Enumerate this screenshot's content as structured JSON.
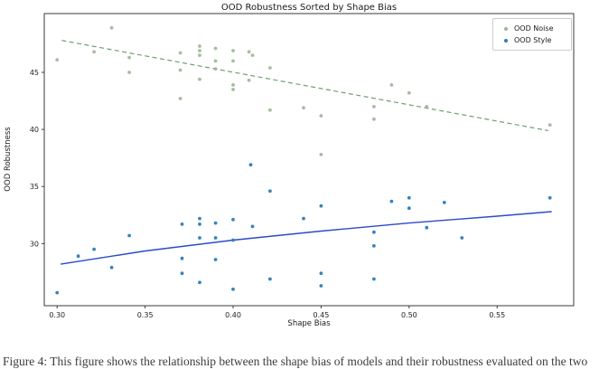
{
  "caption": {
    "text": "Figure 4: This figure shows the relationship between the shape bias of models and their robustness evaluated on the two"
  },
  "legend": {
    "entries": [
      "OOD Noise",
      "OOD Style"
    ]
  },
  "chart_data": {
    "type": "scatter",
    "title": "OOD Robustness Sorted by Shape Bias",
    "xlabel": "Shape Bias",
    "ylabel": "OOD Robustness",
    "xlim": [
      0.2927,
      0.5935
    ],
    "ylim": [
      24.56,
      50.15
    ],
    "grid": false,
    "legend_position": "upper right",
    "xticks": {
      "values": [
        0.3,
        0.35,
        0.4,
        0.45,
        0.5,
        0.55
      ],
      "labels": [
        "0.30",
        "0.35",
        "0.40",
        "0.45",
        "0.50",
        "0.55"
      ]
    },
    "yticks": {
      "values": [
        30,
        35,
        40,
        45
      ],
      "labels": [
        "30",
        "35",
        "40",
        "45"
      ]
    },
    "frame_color": "#3b3b3b",
    "series": [
      {
        "name": "OOD Noise",
        "marker_color": "#9ab795",
        "points": [
          [
            0.3,
            46.1
          ],
          [
            0.321,
            46.8
          ],
          [
            0.331,
            48.9
          ],
          [
            0.341,
            46.3
          ],
          [
            0.341,
            45.0
          ],
          [
            0.37,
            46.7
          ],
          [
            0.37,
            45.2
          ],
          [
            0.37,
            42.7
          ],
          [
            0.381,
            47.3
          ],
          [
            0.381,
            46.9
          ],
          [
            0.381,
            46.5
          ],
          [
            0.381,
            44.4
          ],
          [
            0.39,
            47.1
          ],
          [
            0.39,
            46.0
          ],
          [
            0.39,
            45.3
          ],
          [
            0.4,
            46.9
          ],
          [
            0.4,
            46.0
          ],
          [
            0.4,
            43.9
          ],
          [
            0.4,
            43.5
          ],
          [
            0.409,
            46.8
          ],
          [
            0.411,
            46.5
          ],
          [
            0.409,
            44.3
          ],
          [
            0.421,
            45.4
          ],
          [
            0.421,
            41.7
          ],
          [
            0.44,
            41.9
          ],
          [
            0.45,
            41.2
          ],
          [
            0.45,
            37.8
          ],
          [
            0.48,
            42.0
          ],
          [
            0.48,
            40.9
          ],
          [
            0.49,
            43.9
          ],
          [
            0.5,
            43.2
          ],
          [
            0.51,
            42.0
          ],
          [
            0.58,
            40.4
          ]
        ],
        "trend": {
          "style": "dashed",
          "color": "#6d9e6d",
          "points": [
            [
              0.3026,
              47.8
            ],
            [
              0.579,
              39.9
            ]
          ]
        }
      },
      {
        "name": "OOD Style",
        "marker_color": "#2d7db5",
        "points": [
          [
            0.3,
            25.7
          ],
          [
            0.312,
            28.9
          ],
          [
            0.321,
            29.5
          ],
          [
            0.331,
            27.9
          ],
          [
            0.341,
            30.7
          ],
          [
            0.371,
            31.7
          ],
          [
            0.381,
            32.2
          ],
          [
            0.381,
            31.7
          ],
          [
            0.39,
            31.8
          ],
          [
            0.4,
            32.1
          ],
          [
            0.381,
            30.5
          ],
          [
            0.39,
            30.5
          ],
          [
            0.4,
            30.3
          ],
          [
            0.371,
            28.7
          ],
          [
            0.39,
            28.6
          ],
          [
            0.371,
            27.4
          ],
          [
            0.381,
            26.6
          ],
          [
            0.4,
            26.0
          ],
          [
            0.41,
            36.9
          ],
          [
            0.421,
            34.6
          ],
          [
            0.45,
            33.3
          ],
          [
            0.49,
            33.7
          ],
          [
            0.5,
            34.0
          ],
          [
            0.5,
            33.1
          ],
          [
            0.52,
            33.6
          ],
          [
            0.58,
            34.0
          ],
          [
            0.44,
            32.2
          ],
          [
            0.411,
            31.5
          ],
          [
            0.48,
            31.0
          ],
          [
            0.48,
            29.8
          ],
          [
            0.51,
            31.4
          ],
          [
            0.53,
            30.5
          ],
          [
            0.421,
            26.9
          ],
          [
            0.45,
            27.4
          ],
          [
            0.45,
            26.3
          ],
          [
            0.48,
            26.9
          ]
        ],
        "trend": {
          "style": "solid",
          "color": "#2a4bc6",
          "points": [
            [
              0.302,
              28.2
            ],
            [
              0.35,
              29.35
            ],
            [
              0.4,
              30.3
            ],
            [
              0.45,
              31.1
            ],
            [
              0.5,
              31.8
            ],
            [
              0.55,
              32.4
            ],
            [
              0.581,
              32.8
            ]
          ]
        }
      }
    ]
  }
}
